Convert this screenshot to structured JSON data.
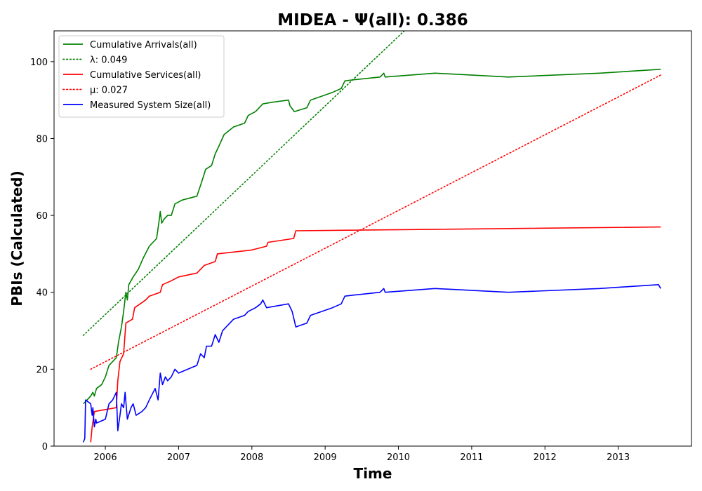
{
  "chart_data": {
    "type": "line",
    "title": "MIDEA -  Ψ(all): 0.386",
    "xlabel": "Time",
    "ylabel": "PBIs (Calculated)",
    "xlim": [
      2005.3,
      2014.0
    ],
    "ylim": [
      0,
      108
    ],
    "x_ticks": [
      2006,
      2007,
      2008,
      2009,
      2010,
      2011,
      2012,
      2013
    ],
    "y_ticks": [
      0,
      20,
      40,
      60,
      80,
      100
    ],
    "grid": false,
    "legend_position": "top-left",
    "series": [
      {
        "name": "Cumulative Arrivals(all)",
        "color": "#008000",
        "style": "solid",
        "points": [
          [
            2005.7,
            11
          ],
          [
            2005.75,
            12
          ],
          [
            2005.8,
            13
          ],
          [
            2005.83,
            14
          ],
          [
            2005.85,
            13
          ],
          [
            2005.88,
            15
          ],
          [
            2005.95,
            16
          ],
          [
            2006.0,
            18
          ],
          [
            2006.05,
            21
          ],
          [
            2006.1,
            22
          ],
          [
            2006.15,
            23
          ],
          [
            2006.18,
            27
          ],
          [
            2006.22,
            31
          ],
          [
            2006.25,
            35
          ],
          [
            2006.28,
            40
          ],
          [
            2006.3,
            38
          ],
          [
            2006.32,
            42
          ],
          [
            2006.38,
            44
          ],
          [
            2006.45,
            46
          ],
          [
            2006.52,
            49
          ],
          [
            2006.6,
            52
          ],
          [
            2006.7,
            54
          ],
          [
            2006.73,
            58
          ],
          [
            2006.75,
            61
          ],
          [
            2006.77,
            58
          ],
          [
            2006.8,
            59
          ],
          [
            2006.85,
            60
          ],
          [
            2006.9,
            60
          ],
          [
            2006.95,
            63
          ],
          [
            2007.05,
            64
          ],
          [
            2007.25,
            65
          ],
          [
            2007.32,
            69
          ],
          [
            2007.37,
            72
          ],
          [
            2007.45,
            73
          ],
          [
            2007.5,
            76
          ],
          [
            2007.55,
            78
          ],
          [
            2007.62,
            81
          ],
          [
            2007.75,
            83
          ],
          [
            2007.9,
            84
          ],
          [
            2007.95,
            86
          ],
          [
            2008.05,
            87
          ],
          [
            2008.1,
            88
          ],
          [
            2008.15,
            89
          ],
          [
            2008.3,
            89.5
          ],
          [
            2008.5,
            90
          ],
          [
            2008.52,
            88.5
          ],
          [
            2008.58,
            87
          ],
          [
            2008.75,
            88
          ],
          [
            2008.8,
            90
          ],
          [
            2009.1,
            92
          ],
          [
            2009.22,
            93
          ],
          [
            2009.27,
            95
          ],
          [
            2009.4,
            95.3
          ],
          [
            2009.75,
            96
          ],
          [
            2009.8,
            97
          ],
          [
            2009.82,
            96
          ],
          [
            2010.5,
            97
          ],
          [
            2011.5,
            96
          ],
          [
            2012.75,
            97
          ],
          [
            2013.58,
            98
          ]
        ]
      },
      {
        "name": "λ: 0.049",
        "color": "#008000",
        "style": "dotted",
        "points": [
          [
            2005.7,
            28.8
          ],
          [
            2010.08,
            108
          ]
        ]
      },
      {
        "name": "Cumulative Services(all)",
        "color": "#ff0000",
        "style": "solid",
        "points": [
          [
            2005.8,
            1
          ],
          [
            2005.82,
            5
          ],
          [
            2005.85,
            9
          ],
          [
            2006.0,
            9.5
          ],
          [
            2006.15,
            10
          ],
          [
            2006.17,
            17
          ],
          [
            2006.2,
            22
          ],
          [
            2006.25,
            24
          ],
          [
            2006.28,
            32
          ],
          [
            2006.37,
            33
          ],
          [
            2006.4,
            36
          ],
          [
            2006.55,
            38
          ],
          [
            2006.6,
            39
          ],
          [
            2006.75,
            40
          ],
          [
            2006.78,
            42
          ],
          [
            2006.9,
            43
          ],
          [
            2007.0,
            44
          ],
          [
            2007.25,
            45
          ],
          [
            2007.35,
            47
          ],
          [
            2007.5,
            48
          ],
          [
            2007.53,
            50
          ],
          [
            2008.0,
            51
          ],
          [
            2008.2,
            52
          ],
          [
            2008.22,
            53
          ],
          [
            2008.57,
            54
          ],
          [
            2008.6,
            56
          ],
          [
            2013.58,
            57
          ]
        ]
      },
      {
        "name": "μ: 0.027",
        "color": "#ff0000",
        "style": "dotted",
        "points": [
          [
            2005.8,
            20
          ],
          [
            2013.58,
            96.5
          ]
        ]
      },
      {
        "name": "Measured System Size(all)",
        "color": "#0000ff",
        "style": "solid",
        "points": [
          [
            2005.7,
            1
          ],
          [
            2005.72,
            2
          ],
          [
            2005.73,
            12
          ],
          [
            2005.8,
            11
          ],
          [
            2005.82,
            8
          ],
          [
            2005.83,
            10
          ],
          [
            2005.85,
            5
          ],
          [
            2005.87,
            7
          ],
          [
            2005.88,
            6
          ],
          [
            2006.0,
            7
          ],
          [
            2006.05,
            11
          ],
          [
            2006.1,
            12
          ],
          [
            2006.15,
            14
          ],
          [
            2006.17,
            4
          ],
          [
            2006.2,
            8
          ],
          [
            2006.22,
            11
          ],
          [
            2006.25,
            10
          ],
          [
            2006.27,
            14
          ],
          [
            2006.3,
            7
          ],
          [
            2006.35,
            10
          ],
          [
            2006.38,
            11
          ],
          [
            2006.42,
            8
          ],
          [
            2006.5,
            9
          ],
          [
            2006.55,
            10
          ],
          [
            2006.6,
            12
          ],
          [
            2006.68,
            15
          ],
          [
            2006.72,
            12
          ],
          [
            2006.75,
            19
          ],
          [
            2006.78,
            16
          ],
          [
            2006.82,
            18
          ],
          [
            2006.85,
            17
          ],
          [
            2006.9,
            18
          ],
          [
            2006.95,
            20
          ],
          [
            2007.0,
            19
          ],
          [
            2007.25,
            21
          ],
          [
            2007.3,
            24
          ],
          [
            2007.35,
            23
          ],
          [
            2007.38,
            26
          ],
          [
            2007.45,
            26
          ],
          [
            2007.5,
            29
          ],
          [
            2007.55,
            27
          ],
          [
            2007.6,
            30
          ],
          [
            2007.75,
            33
          ],
          [
            2007.9,
            34
          ],
          [
            2007.95,
            35
          ],
          [
            2008.05,
            36
          ],
          [
            2008.12,
            37
          ],
          [
            2008.15,
            38
          ],
          [
            2008.2,
            36
          ],
          [
            2008.5,
            37
          ],
          [
            2008.55,
            35
          ],
          [
            2008.6,
            31
          ],
          [
            2008.75,
            32
          ],
          [
            2008.8,
            34
          ],
          [
            2009.1,
            36
          ],
          [
            2009.22,
            37
          ],
          [
            2009.27,
            39
          ],
          [
            2009.4,
            39.3
          ],
          [
            2009.75,
            40
          ],
          [
            2009.8,
            41
          ],
          [
            2009.82,
            40
          ],
          [
            2010.5,
            41
          ],
          [
            2011.5,
            40
          ],
          [
            2012.75,
            41
          ],
          [
            2013.55,
            42
          ],
          [
            2013.58,
            41
          ]
        ]
      }
    ]
  }
}
